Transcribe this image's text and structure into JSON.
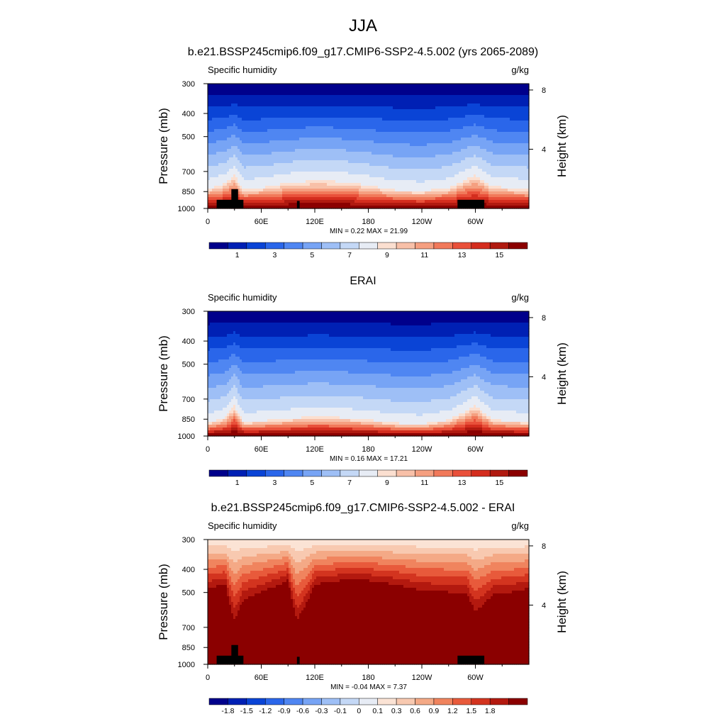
{
  "figure_title": "JJA",
  "colors": {
    "seq": [
      "#00008b",
      "#0020b4",
      "#0a44d6",
      "#2a66ea",
      "#4f86f2",
      "#77a4f5",
      "#9ebff6",
      "#c4d8f6",
      "#e7ecf5",
      "#fbdfd0",
      "#f8c0a8",
      "#f59f80",
      "#f1795a",
      "#e9503a",
      "#d42d1e",
      "#b01a10",
      "#8b0000"
    ],
    "diff": [
      "#00008b",
      "#0020b4",
      "#0a44d6",
      "#2a66ea",
      "#4f86f2",
      "#77a4f5",
      "#9ebff6",
      "#c4d8f6",
      "#e7ecf5",
      "#fbe3d5",
      "#f8c9b0",
      "#f4a986",
      "#f0845e",
      "#e85a3b",
      "#d3341f",
      "#b3190f",
      "#8b0000"
    ],
    "land": "#000000"
  },
  "chart_data": [
    {
      "type": "heatmap",
      "title": "b.e21.BSSP245cmip6.f09_g17.CMIP6-SSP2-4.5.002 (yrs 2065-2089)",
      "left_label": "Specific humidity",
      "right_label": "g/kg",
      "ylabel": "Pressure (mb)",
      "ylabel_right": "Height (km)",
      "x_ticks": [
        "0",
        "60E",
        "120E",
        "180",
        "120W",
        "60W"
      ],
      "x_tick_lon": [
        0,
        60,
        120,
        180,
        240,
        300
      ],
      "xlim": [
        0,
        360
      ],
      "y_ticks": [
        "300",
        "400",
        "500",
        "700",
        "850",
        "1000"
      ],
      "y_tick_values": [
        300,
        400,
        500,
        700,
        850,
        1000
      ],
      "ylim": [
        1000,
        300
      ],
      "y_scale": "log",
      "height_ticks": [
        "8",
        "4"
      ],
      "height_tick_km": [
        8,
        4
      ],
      "min_text": "MIN =   0.22  MAX =  21.99",
      "min": 0.22,
      "max": 21.99,
      "levels": [
        "1",
        "3",
        "5",
        "7",
        "9",
        "11",
        "13",
        "15"
      ],
      "level_values": [
        0.5,
        1,
        2,
        3,
        4,
        5,
        6,
        7,
        8,
        9,
        10,
        11,
        12,
        13,
        14,
        15
      ],
      "colorbar_label_values": [
        1,
        3,
        5,
        7,
        9,
        11,
        13,
        15
      ],
      "field_profile_pressure_at_lon": {
        "lon": [
          0,
          20,
          30,
          40,
          60,
          90,
          120,
          150,
          180,
          210,
          240,
          270,
          290,
          300,
          320,
          340,
          360
        ],
        "p_of_9gkg": [
          810,
          760,
          700,
          810,
          800,
          760,
          740,
          750,
          780,
          820,
          830,
          800,
          730,
          700,
          790,
          800,
          810
        ]
      },
      "land_blocks_lon": [
        [
          10,
          40
        ],
        [
          100,
          103
        ],
        [
          280,
          310
        ]
      ],
      "land_top_p": [
        [
          920,
          830
        ],
        [
          930
        ],
        [
          920
        ]
      ]
    },
    {
      "type": "heatmap",
      "title": "ERAI",
      "left_label": "Specific humidity",
      "right_label": "g/kg",
      "ylabel": "Pressure (mb)",
      "ylabel_right": "Height (km)",
      "x_ticks": [
        "0",
        "60E",
        "120E",
        "180",
        "120W",
        "60W"
      ],
      "x_tick_lon": [
        0,
        60,
        120,
        180,
        240,
        300
      ],
      "xlim": [
        0,
        360
      ],
      "y_ticks": [
        "300",
        "400",
        "500",
        "700",
        "850",
        "1000"
      ],
      "y_tick_values": [
        300,
        400,
        500,
        700,
        850,
        1000
      ],
      "ylim": [
        1000,
        300
      ],
      "y_scale": "log",
      "height_ticks": [
        "8",
        "4"
      ],
      "height_tick_km": [
        8,
        4
      ],
      "min_text": "MIN =   0.16  MAX =  17.21",
      "min": 0.16,
      "max": 17.21,
      "levels": [
        "1",
        "3",
        "5",
        "7",
        "9",
        "11",
        "13",
        "15"
      ],
      "level_values": [
        0.5,
        1,
        2,
        3,
        4,
        5,
        6,
        7,
        8,
        9,
        10,
        11,
        12,
        13,
        14,
        15
      ],
      "colorbar_label_values": [
        1,
        3,
        5,
        7,
        9,
        11,
        13,
        15
      ],
      "field_profile_pressure_at_lon": {
        "lon": [
          0,
          20,
          30,
          40,
          60,
          90,
          120,
          150,
          180,
          210,
          240,
          270,
          290,
          300,
          320,
          340,
          360
        ],
        "p_of_9gkg": [
          870,
          820,
          720,
          860,
          850,
          830,
          810,
          820,
          840,
          870,
          880,
          840,
          760,
          720,
          840,
          850,
          860
        ]
      },
      "land_blocks_lon": [],
      "land_top_p": []
    },
    {
      "type": "heatmap",
      "title": "b.e21.BSSP245cmip6.f09_g17.CMIP6-SSP2-4.5.002 - ERAI",
      "left_label": "Specific humidity",
      "right_label": "g/kg",
      "ylabel": "Pressure (mb)",
      "ylabel_right": "Height (km)",
      "x_ticks": [
        "0",
        "60E",
        "120E",
        "180",
        "120W",
        "60W"
      ],
      "x_tick_lon": [
        0,
        60,
        120,
        180,
        240,
        300
      ],
      "xlim": [
        0,
        360
      ],
      "y_ticks": [
        "300",
        "400",
        "500",
        "700",
        "850",
        "1000"
      ],
      "y_tick_values": [
        300,
        400,
        500,
        700,
        850,
        1000
      ],
      "ylim": [
        1000,
        300
      ],
      "y_scale": "log",
      "height_ticks": [
        "8",
        "4"
      ],
      "height_tick_km": [
        8,
        4
      ],
      "min_text": "MIN =  -0.04  MAX =   7.37",
      "min": -0.04,
      "max": 7.37,
      "levels": [
        "-1.8",
        "-1.5",
        "-1.2",
        "-0.9",
        "-0.6",
        "-0.3",
        "-0.1",
        "0",
        "0.1",
        "0.3",
        "0.6",
        "0.9",
        "1.2",
        "1.5",
        "1.8"
      ],
      "level_values": [
        -1.8,
        -1.5,
        -1.2,
        -0.9,
        -0.6,
        -0.3,
        -0.1,
        0,
        0.1,
        0.3,
        0.6,
        0.9,
        1.2,
        1.5,
        1.8
      ],
      "colorbar_label_values": [
        -1.8,
        -1.5,
        -1.2,
        -0.9,
        -0.6,
        -0.3,
        -0.1,
        0,
        0.1,
        0.3,
        0.6,
        0.9,
        1.2,
        1.5,
        1.8
      ],
      "field_profile_pressure_at_lon": {
        "lon": [
          0,
          20,
          30,
          40,
          60,
          90,
          100,
          120,
          150,
          180,
          210,
          240,
          270,
          290,
          300,
          320,
          340,
          360
        ],
        "p_of_1p8": [
          500,
          480,
          700,
          560,
          520,
          460,
          700,
          480,
          460,
          460,
          480,
          510,
          520,
          520,
          640,
          530,
          520,
          500
        ]
      },
      "land_blocks_lon": [
        [
          10,
          40
        ],
        [
          100,
          103
        ],
        [
          280,
          310
        ]
      ],
      "land_top_p": [
        [
          920,
          830
        ],
        [
          930
        ],
        [
          920
        ]
      ]
    }
  ]
}
